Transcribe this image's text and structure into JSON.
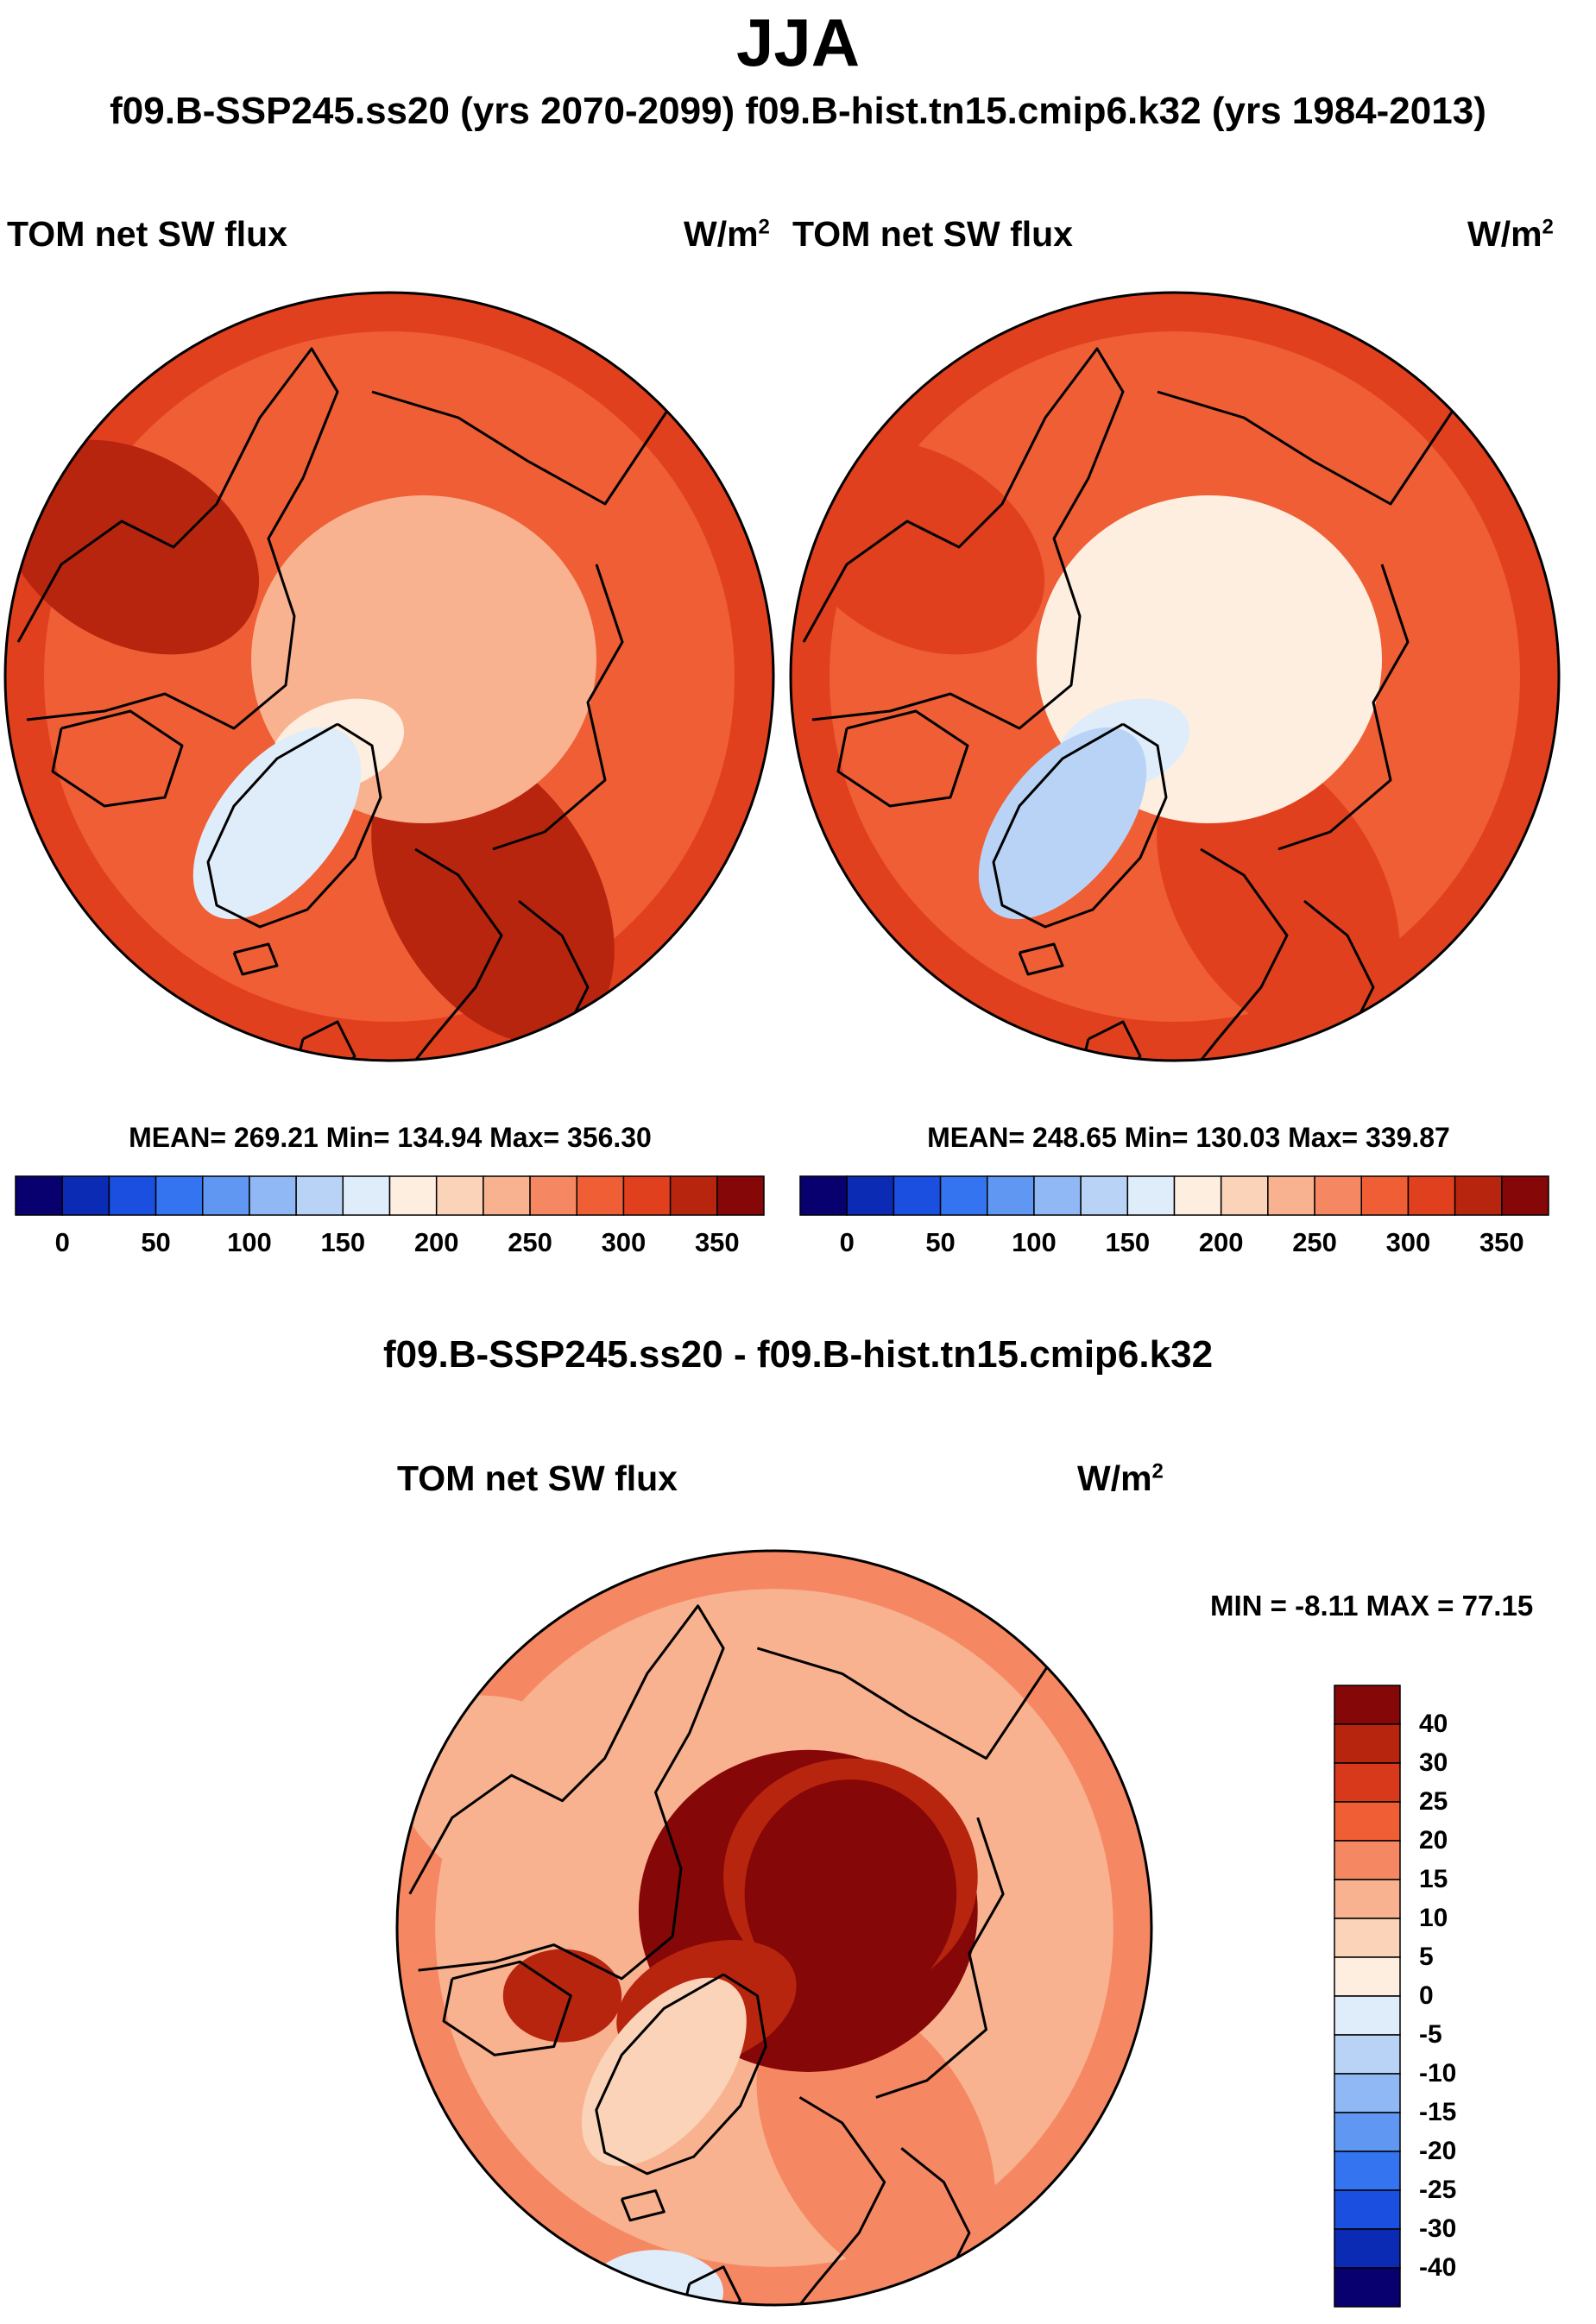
{
  "header": {
    "title": "JJA",
    "subtitle": "f09.B-SSP245.ss20 (yrs 2070-2099)  f09.B-hist.tn15.cmip6.k32 (yrs 1984-2013)"
  },
  "palette": {
    "abs": [
      "#08006e",
      "#0b2bb4",
      "#1a4fe0",
      "#3574f0",
      "#5f97f3",
      "#8fb8f5",
      "#b9d3f6",
      "#dfecfa",
      "#fdeee0",
      "#fbd3b8",
      "#f8b28f",
      "#f58862",
      "#ef5e34",
      "#e0401e",
      "#b8250f",
      "#850707"
    ],
    "diff": [
      "#08006e",
      "#0b2bb4",
      "#1a4fe0",
      "#3574f0",
      "#5f97f3",
      "#8fb8f5",
      "#b9d3f6",
      "#dfecfa",
      "#fdeee0",
      "#fbd3b8",
      "#f8b28f",
      "#f58862",
      "#ef5e34",
      "#d8391a",
      "#b8250f",
      "#850707"
    ]
  },
  "chart_data": [
    {
      "type": "heatmap",
      "name": "future",
      "title": "TOM net SW flux",
      "units": "W/m",
      "units_exp": "2",
      "stats": "MEAN= 269.21  Min= 134.94  Max= 356.30",
      "mean": 269.21,
      "min": 134.94,
      "max": 356.3,
      "colorbar_levels": [
        0,
        25,
        50,
        75,
        100,
        125,
        150,
        175,
        200,
        225,
        250,
        275,
        300,
        325,
        350
      ],
      "colorbar_labels": [
        "0",
        "50",
        "100",
        "150",
        "200",
        "250",
        "300",
        "350"
      ],
      "regions": {
        "background": 290,
        "arctic": 230,
        "greenland": 150,
        "europe": 325,
        "pacific": 335
      }
    },
    {
      "type": "heatmap",
      "name": "historical",
      "title": "TOM net SW flux",
      "units": "W/m",
      "units_exp": "2",
      "stats": "MEAN= 248.65  Min= 130.03  Max= 339.87",
      "mean": 248.65,
      "min": 130.03,
      "max": 339.87,
      "colorbar_levels": [
        0,
        25,
        50,
        75,
        100,
        125,
        150,
        175,
        200,
        225,
        250,
        275,
        300,
        325,
        350
      ],
      "colorbar_labels": [
        "0",
        "50",
        "100",
        "150",
        "200",
        "250",
        "300",
        "350"
      ],
      "regions": {
        "background": 285,
        "arctic": 185,
        "greenland": 145,
        "europe": 315,
        "pacific": 320
      }
    },
    {
      "type": "heatmap",
      "name": "difference",
      "case_title": "f09.B-SSP245.ss20 - f09.B-hist.tn15.cmip6.k32",
      "title": "TOM net SW flux",
      "units": "W/m",
      "units_exp": "2",
      "stats": "MIN =  -8.11 MAX =  77.15",
      "min": -8.11,
      "max": 77.15,
      "colorbar_levels": [
        -40,
        -30,
        -25,
        -20,
        -15,
        -10,
        -5,
        0,
        5,
        10,
        15,
        20,
        25,
        30,
        40
      ],
      "colorbar_labels": [
        "40",
        "30",
        "25",
        "20",
        "15",
        "10",
        "5",
        "0",
        "-5",
        "-10",
        "-15",
        "-20",
        "-25",
        "-30",
        "-40"
      ],
      "regions": {
        "background": 12,
        "arctic": 45,
        "greenland": 7,
        "europe": 15,
        "atlantic": -3
      }
    }
  ]
}
